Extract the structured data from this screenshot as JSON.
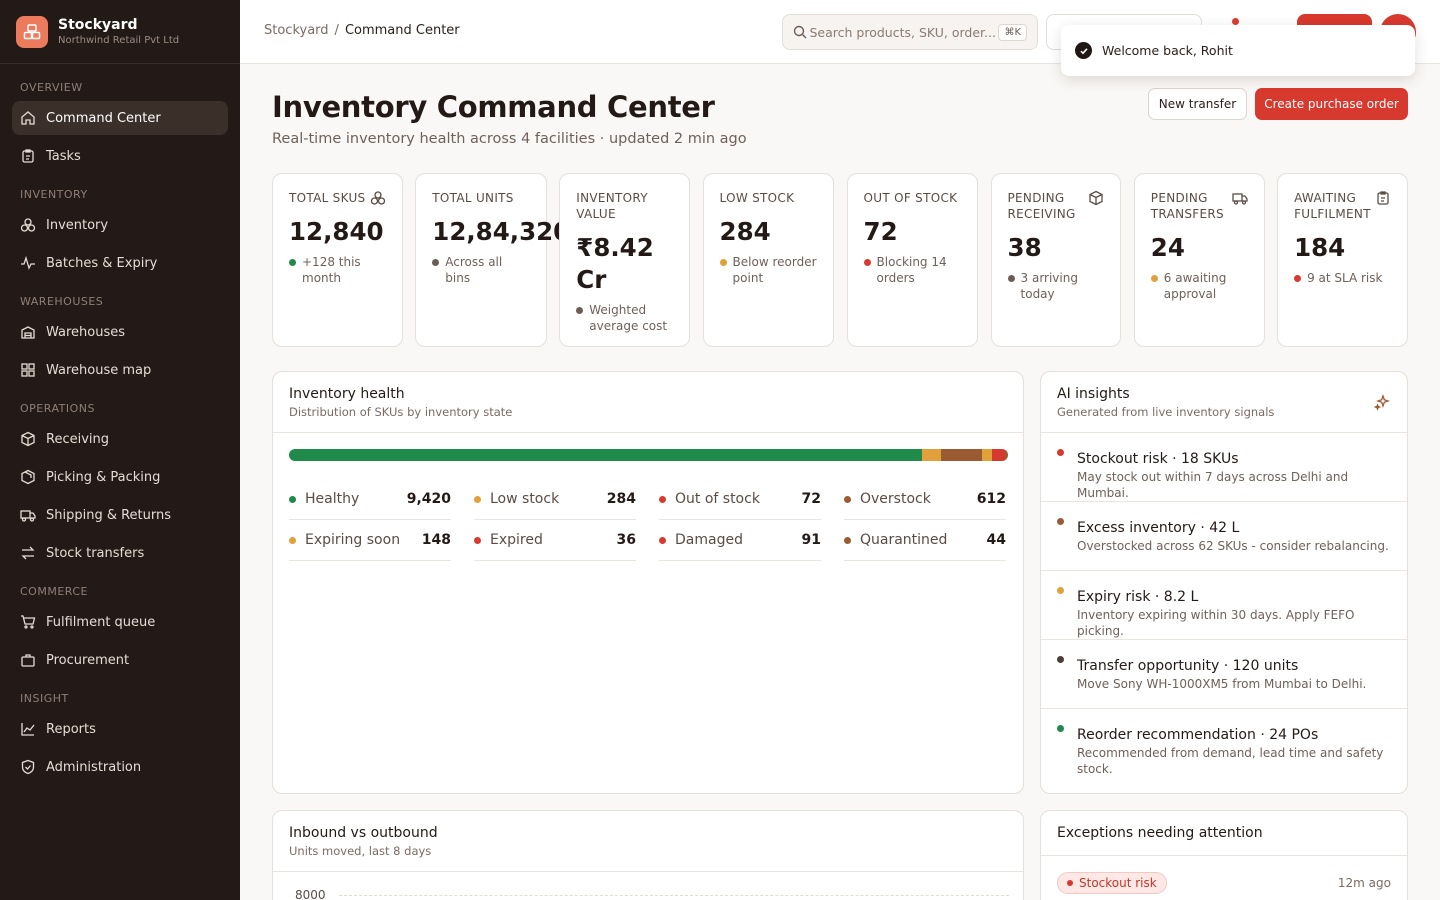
{
  "app": {
    "name": "Stockyard",
    "org": "Northwind Retail Pvt Ltd"
  },
  "sidebar": {
    "sections": [
      {
        "title": "OVERVIEW",
        "items": [
          {
            "label": "Command Center",
            "icon": "home-icon",
            "active": true
          },
          {
            "label": "Tasks",
            "icon": "clipboard-icon"
          }
        ]
      },
      {
        "title": "INVENTORY",
        "items": [
          {
            "label": "Inventory",
            "icon": "boxes-icon"
          },
          {
            "label": "Batches & Expiry",
            "icon": "activity-icon"
          }
        ]
      },
      {
        "title": "WAREHOUSES",
        "items": [
          {
            "label": "Warehouses",
            "icon": "warehouse-icon"
          },
          {
            "label": "Warehouse map",
            "icon": "grid-icon"
          }
        ]
      },
      {
        "title": "OPERATIONS",
        "items": [
          {
            "label": "Receiving",
            "icon": "package-icon"
          },
          {
            "label": "Picking & Packing",
            "icon": "box-icon"
          },
          {
            "label": "Shipping & Returns",
            "icon": "truck-icon"
          },
          {
            "label": "Stock transfers",
            "icon": "arrows-icon"
          }
        ]
      },
      {
        "title": "COMMERCE",
        "items": [
          {
            "label": "Fulfilment queue",
            "icon": "cart-icon"
          },
          {
            "label": "Procurement",
            "icon": "briefcase-icon"
          }
        ]
      },
      {
        "title": "INSIGHT",
        "items": [
          {
            "label": "Reports",
            "icon": "chart-icon"
          },
          {
            "label": "Administration",
            "icon": "shield-icon"
          }
        ]
      }
    ]
  },
  "topbar": {
    "breadcrumb": [
      "Stockyard",
      "Command Center"
    ],
    "search_placeholder": "Search products, SKU, order...",
    "search_shortcut": "⌘K"
  },
  "toast": {
    "message": "Welcome back, Rohit"
  },
  "page": {
    "title": "Inventory Command Center",
    "subtitle": "Real-time inventory health across 4 facilities · updated 2 min ago",
    "new_transfer": "New transfer",
    "create_po": "Create purchase order"
  },
  "kpis": [
    {
      "label": "Total SKUs",
      "value": "12,840",
      "note": "+128 this month",
      "color": "#1f8a4a",
      "icon": "boxes-icon"
    },
    {
      "label": "Total units",
      "value": "12,84,320",
      "note": "Across all bins",
      "color": "#6b5d56",
      "icon": ""
    },
    {
      "label": "Inventory value",
      "value": "₹8.42 Cr",
      "note": "Weighted average cost",
      "color": "#6b5d56",
      "icon": ""
    },
    {
      "label": "Low stock",
      "value": "284",
      "note": "Below reorder point",
      "color": "#e0a03a",
      "icon": ""
    },
    {
      "label": "Out of stock",
      "value": "72",
      "note": "Blocking 14 orders",
      "color": "#d8392e",
      "icon": ""
    },
    {
      "label": "Pending receiving",
      "value": "38",
      "note": "3 arriving today",
      "color": "#6b5d56",
      "icon": "package-icon"
    },
    {
      "label": "Pending transfers",
      "value": "24",
      "note": "6 awaiting approval",
      "color": "#e0a03a",
      "icon": "truck-icon"
    },
    {
      "label": "Awaiting fulfilment",
      "value": "184",
      "note": "9 at SLA risk",
      "color": "#d8392e",
      "icon": "clipboard-icon"
    }
  ],
  "health": {
    "title": "Inventory health",
    "subtitle": "Distribution of SKUs by inventory state",
    "states": [
      {
        "label": "Healthy",
        "value": "9,420",
        "color": "#1f8a4a"
      },
      {
        "label": "Low stock",
        "value": "284",
        "color": "#e0a03a"
      },
      {
        "label": "Out of stock",
        "value": "72",
        "color": "#d8392e"
      },
      {
        "label": "Overstock",
        "value": "612",
        "color": "#9c5a32"
      },
      {
        "label": "Expiring soon",
        "value": "148",
        "color": "#e0a03a"
      },
      {
        "label": "Expired",
        "value": "36",
        "color": "#d8392e"
      },
      {
        "label": "Damaged",
        "value": "91",
        "color": "#d8392e"
      },
      {
        "label": "Quarantined",
        "value": "44",
        "color": "#9c5a32"
      }
    ]
  },
  "insights": {
    "title": "AI insights",
    "subtitle": "Generated from live inventory signals",
    "items": [
      {
        "title": "Stockout risk · 18 SKUs",
        "desc": "May stock out within 7 days across Delhi and Mumbai.",
        "color": "#d8392e"
      },
      {
        "title": "Excess inventory · 42 L",
        "desc": "Overstocked across 62 SKUs - consider rebalancing.",
        "color": "#9c5a32"
      },
      {
        "title": "Expiry risk · 8.2 L",
        "desc": "Inventory expiring within 30 days. Apply FEFO picking.",
        "color": "#e0a03a"
      },
      {
        "title": "Transfer opportunity · 120 units",
        "desc": "Move Sony WH-1000XM5 from Mumbai to Delhi.",
        "color": "#4a3e39"
      },
      {
        "title": "Reorder recommendation · 24 POs",
        "desc": "Recommended from demand, lead time and safety stock.",
        "color": "#1f8a4a"
      }
    ]
  },
  "inout": {
    "title": "Inbound vs outbound",
    "subtitle": "Units moved, last 8 days",
    "y_top_tick": "8000"
  },
  "exceptions": {
    "title": "Exceptions needing attention",
    "first": {
      "tag": "Stockout risk",
      "time": "12m ago"
    }
  }
}
